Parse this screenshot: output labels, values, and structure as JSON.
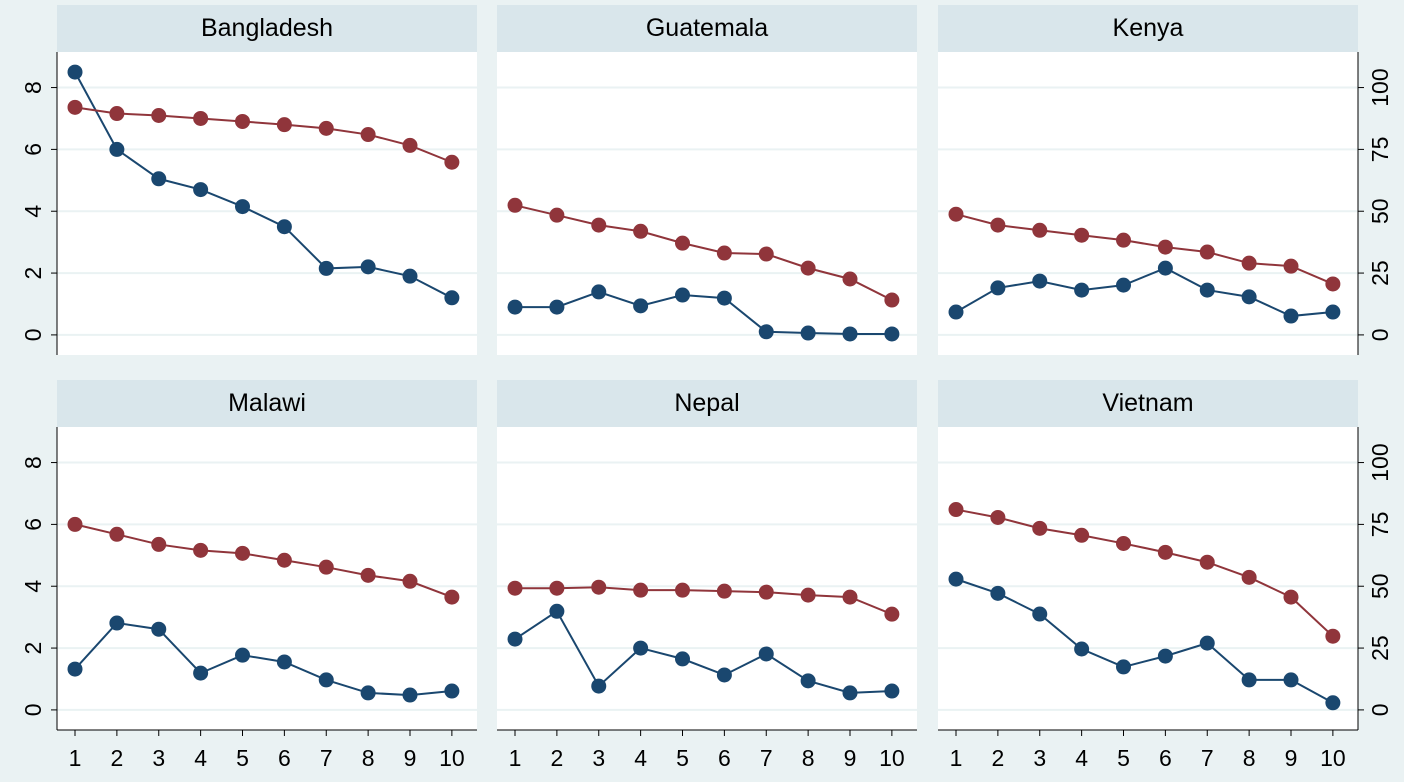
{
  "chart_data": {
    "type": "line",
    "x": [
      1,
      2,
      3,
      4,
      5,
      6,
      7,
      8,
      9,
      10
    ],
    "xlim": [
      0.57,
      10.6
    ],
    "ylim": [
      -0.65,
      9.15
    ],
    "yticks": [
      0,
      2,
      4,
      6,
      8
    ],
    "y2lim": [
      -8.125,
      114.375
    ],
    "y2ticks": [
      0,
      25,
      50,
      75,
      100
    ],
    "grid": true,
    "panels": [
      {
        "title": "Bangladesh",
        "series": [
          {
            "color": "#1a476f",
            "values": [
              8.5,
              6.0,
              5.05,
              4.7,
              4.15,
              3.5,
              2.15,
              2.2,
              1.9,
              1.2
            ]
          },
          {
            "color": "#90353b",
            "axis": "y2",
            "values": [
              92,
              89.5,
              88.7,
              87.5,
              86.3,
              85,
              83.5,
              81,
              76.6,
              69.8
            ]
          }
        ]
      },
      {
        "title": "Guatemala",
        "series": [
          {
            "color": "#1a476f",
            "values": [
              0.9,
              0.9,
              1.39,
              0.94,
              1.29,
              1.19,
              0.1,
              0.06,
              0.03,
              0.03
            ]
          },
          {
            "color": "#90353b",
            "axis": "y2",
            "values": [
              52.4,
              48.4,
              44.4,
              41.9,
              37.1,
              33.1,
              32.7,
              27,
              22.6,
              14.1
            ]
          }
        ]
      },
      {
        "title": "Kenya",
        "series": [
          {
            "color": "#1a476f",
            "values": [
              0.74,
              1.52,
              1.74,
              1.45,
              1.61,
              2.16,
              1.45,
              1.23,
              0.61,
              0.74
            ]
          },
          {
            "color": "#90353b",
            "axis": "y2",
            "values": [
              48.8,
              44.4,
              42.3,
              40.3,
              38.3,
              35.5,
              33.5,
              29,
              27.8,
              20.6
            ]
          }
        ]
      },
      {
        "title": "Malawi",
        "series": [
          {
            "color": "#1a476f",
            "values": [
              1.32,
              2.81,
              2.61,
              1.19,
              1.77,
              1.55,
              0.97,
              0.55,
              0.48,
              0.61
            ]
          },
          {
            "color": "#90353b",
            "axis": "y2",
            "values": [
              75,
              71,
              66.9,
              64.5,
              63.3,
              60.5,
              57.7,
              54.4,
              52,
              45.6
            ]
          }
        ]
      },
      {
        "title": "Nepal",
        "series": [
          {
            "color": "#1a476f",
            "values": [
              2.29,
              3.19,
              0.77,
              2.0,
              1.65,
              1.13,
              1.81,
              0.94,
              0.55,
              0.61
            ]
          },
          {
            "color": "#90353b",
            "axis": "y2",
            "values": [
              49.2,
              49.2,
              49.6,
              48.4,
              48.4,
              48,
              47.6,
              46.4,
              45.6,
              38.7
            ]
          }
        ]
      },
      {
        "title": "Vietnam",
        "series": [
          {
            "color": "#1a476f",
            "values": [
              4.23,
              3.77,
              3.1,
              1.97,
              1.39,
              1.74,
              2.16,
              0.97,
              0.97,
              0.23
            ]
          },
          {
            "color": "#90353b",
            "axis": "y2",
            "values": [
              81,
              77.8,
              73.4,
              70.6,
              67.3,
              63.7,
              59.7,
              53.6,
              45.6,
              29.8
            ]
          }
        ]
      }
    ]
  }
}
